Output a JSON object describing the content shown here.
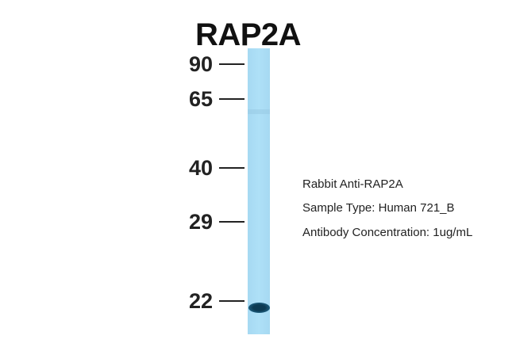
{
  "title": "RAP2A",
  "markers": [
    {
      "label": "90"
    },
    {
      "label": "65"
    },
    {
      "label": "40"
    },
    {
      "label": "29"
    },
    {
      "label": "22"
    }
  ],
  "info": {
    "antibody": "Rabbit Anti-RAP2A",
    "sample_type": "Sample Type: Human 721_B",
    "concentration": "Antibody Concentration: 1ug/mL"
  },
  "colors": {
    "lane": "#aadcf5",
    "band": "#0c3a52"
  }
}
